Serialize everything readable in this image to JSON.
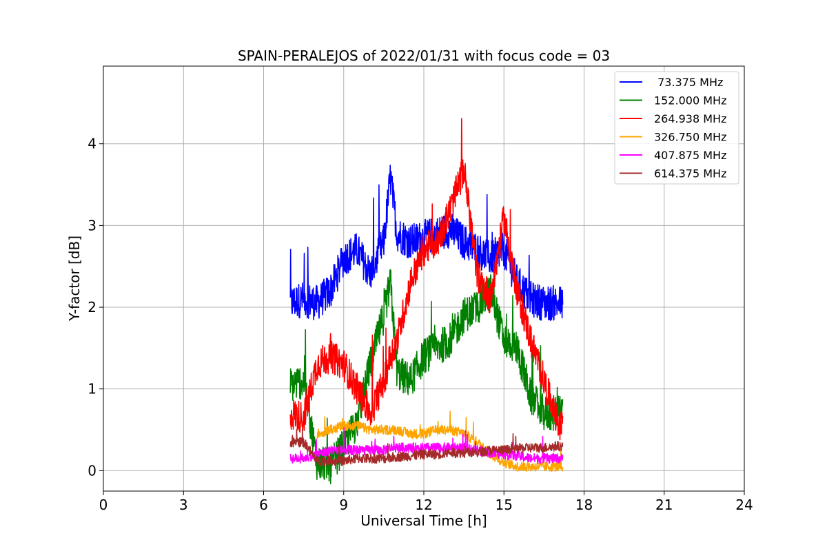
{
  "chart_data": {
    "type": "line",
    "title": "SPAIN-PERALEJOS of 2022/01/31 with focus code = 03",
    "xlabel": "Universal Time [h]",
    "ylabel": "Y-factor [dB]",
    "xlim": [
      0,
      24
    ],
    "ylim": [
      -0.25,
      4.95
    ],
    "xticks": [
      "0",
      "3",
      "6",
      "9",
      "12",
      "15",
      "18",
      "21",
      "24"
    ],
    "yticks": [
      "0",
      "1",
      "2",
      "3",
      "4"
    ],
    "grid": true,
    "legend_position": "top-right",
    "x": [
      7.0,
      7.5,
      8.0,
      8.5,
      9.0,
      9.5,
      10.0,
      10.5,
      10.75,
      11.0,
      11.5,
      12.0,
      12.5,
      13.0,
      13.5,
      14.0,
      14.5,
      15.0,
      15.5,
      16.0,
      16.5,
      17.0,
      17.2
    ],
    "series": [
      {
        "name": " 73.375 MHz",
        "color": "#0000ff",
        "values": [
          2.05,
          2.1,
          2.05,
          2.2,
          2.6,
          2.7,
          2.4,
          2.8,
          3.6,
          2.9,
          2.8,
          2.85,
          2.9,
          2.95,
          2.8,
          2.7,
          2.6,
          2.7,
          2.3,
          2.1,
          2.05,
          2.05,
          2.05
        ]
      },
      {
        "name": "152.000 MHz",
        "color": "#008000",
        "values": [
          1.05,
          1.1,
          0.1,
          0.05,
          0.3,
          0.6,
          1.3,
          1.9,
          2.3,
          1.2,
          1.1,
          1.4,
          1.5,
          1.6,
          1.9,
          2.0,
          2.2,
          1.6,
          1.5,
          0.9,
          0.7,
          0.7,
          0.7
        ]
      },
      {
        "name": "264.938 MHz",
        "color": "#ff0000",
        "values": [
          0.7,
          0.65,
          1.3,
          1.4,
          1.3,
          1.0,
          0.7,
          1.1,
          1.4,
          1.6,
          2.3,
          2.7,
          2.8,
          3.2,
          3.7,
          2.4,
          2.1,
          3.1,
          2.2,
          1.6,
          1.1,
          0.6,
          0.5
        ]
      },
      {
        "name": "326.750 MHz",
        "color": "#ffa500",
        "values": [
          null,
          null,
          0.45,
          0.5,
          0.55,
          0.55,
          0.5,
          0.5,
          0.5,
          0.5,
          0.45,
          0.45,
          0.5,
          0.5,
          0.45,
          0.35,
          0.2,
          0.1,
          0.05,
          0.05,
          0.05,
          0.05,
          0.05
        ]
      },
      {
        "name": "407.875 MHz",
        "color": "#ff00ff",
        "values": [
          0.15,
          0.15,
          0.2,
          0.25,
          0.25,
          0.25,
          0.25,
          0.25,
          0.28,
          0.28,
          0.28,
          0.28,
          0.28,
          0.28,
          0.28,
          0.25,
          0.22,
          0.2,
          0.18,
          0.15,
          0.15,
          0.15,
          0.15
        ]
      },
      {
        "name": "614.375 MHz",
        "color": "#a52a2a",
        "values": [
          0.35,
          0.35,
          0.12,
          0.12,
          0.12,
          0.15,
          0.15,
          0.15,
          0.16,
          0.17,
          0.18,
          0.2,
          0.2,
          0.22,
          0.22,
          0.22,
          0.25,
          0.25,
          0.27,
          0.28,
          0.28,
          0.3,
          0.3
        ]
      }
    ]
  }
}
